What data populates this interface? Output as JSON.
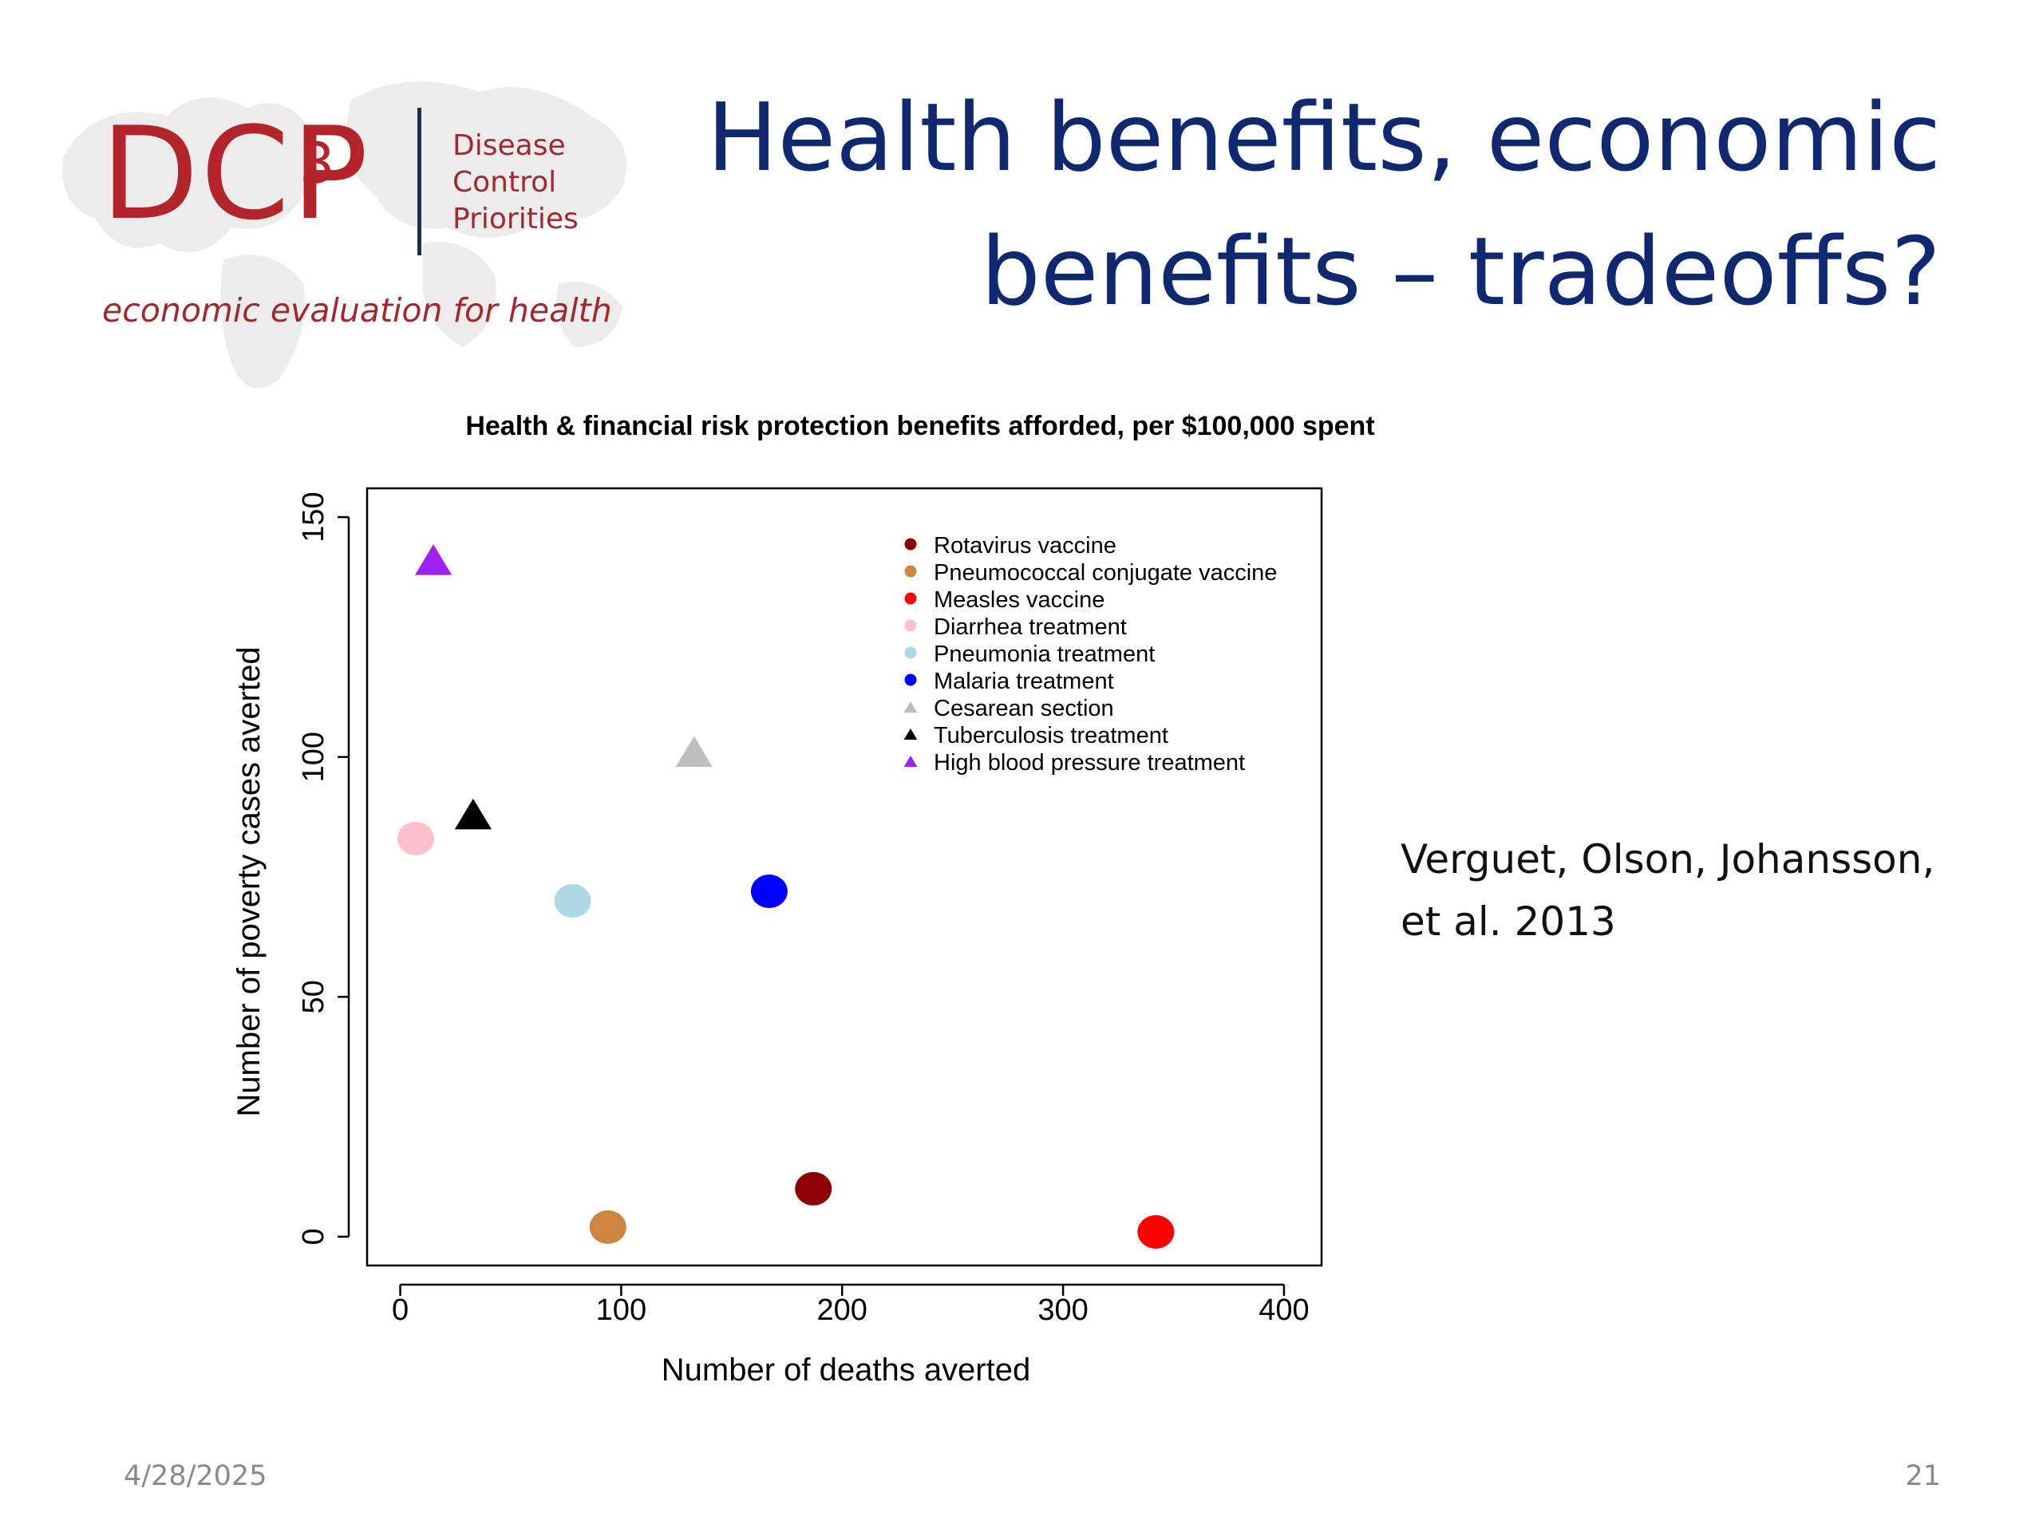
{
  "logo": {
    "wordmark": "DCP",
    "superscript": "3",
    "words": [
      "Disease",
      "Control",
      "Priorities"
    ],
    "tagline": "economic evaluation for health"
  },
  "slide": {
    "title_line1": "Health benefits, economic",
    "title_line2": "benefits – tradeoffs?",
    "citation_line1": "Verguet, Olson, Johansson,",
    "citation_line2": "et al. 2013",
    "date": "4/28/2025",
    "page_number": "21"
  },
  "chart_data": {
    "type": "scatter",
    "title": "Health & financial risk protection benefits afforded, per $100,000 spent",
    "xlabel": "Number of deaths averted",
    "ylabel": "Number of poverty cases averted",
    "xlim": [
      -15,
      417
    ],
    "ylim": [
      -6,
      156
    ],
    "xticks": [
      0,
      100,
      200,
      300,
      400
    ],
    "yticks": [
      0,
      50,
      100,
      150
    ],
    "legend_position": "top-right",
    "grid": false,
    "series": [
      {
        "name": "Rotavirus vaccine",
        "shape": "circle",
        "color": "#8b0000",
        "x": 187,
        "y": 10
      },
      {
        "name": "Pneumococcal conjugate vaccine",
        "shape": "circle",
        "color": "#cd853f",
        "x": 94,
        "y": 2
      },
      {
        "name": "Measles vaccine",
        "shape": "circle",
        "color": "#ff0000",
        "x": 342,
        "y": 1
      },
      {
        "name": "Diarrhea treatment",
        "shape": "circle",
        "color": "#ffc0cb",
        "x": 7,
        "y": 83
      },
      {
        "name": "Pneumonia treatment",
        "shape": "circle",
        "color": "#add8e6",
        "x": 78,
        "y": 70
      },
      {
        "name": "Malaria treatment",
        "shape": "circle",
        "color": "#0000ff",
        "x": 167,
        "y": 72
      },
      {
        "name": "Cesarean section",
        "shape": "triangle",
        "color": "#bebebe",
        "x": 133,
        "y": 101
      },
      {
        "name": "Tuberculosis treatment",
        "shape": "triangle",
        "color": "#000000",
        "x": 33,
        "y": 88
      },
      {
        "name": "High blood pressure treatment",
        "shape": "triangle",
        "color": "#a020f0",
        "x": 15,
        "y": 141
      }
    ]
  }
}
